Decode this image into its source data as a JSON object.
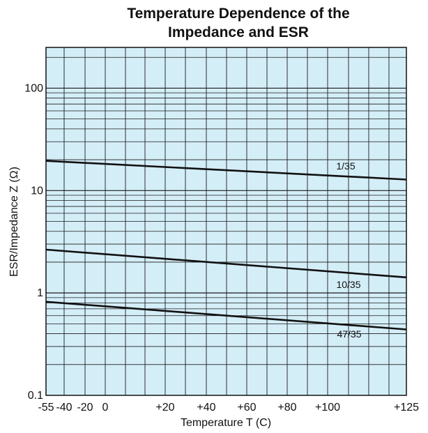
{
  "chart_data": {
    "type": "line",
    "title": "Temperature Dependence of the Impedance and ESR",
    "xlabel": "Temperature T (C)",
    "ylabel": "ESR/Impedance Z (Ω)",
    "xlim": [
      -55,
      125
    ],
    "ylim": [
      0.1,
      250
    ],
    "yscale": "log",
    "grid": true,
    "x_ticks": [
      -55,
      -40,
      -20,
      0,
      20,
      40,
      60,
      80,
      100,
      125
    ],
    "x_tick_labels": [
      "-55",
      "-40",
      "-20",
      "0",
      "+20",
      "+40",
      "+60",
      "+80",
      "+100",
      "+125"
    ],
    "y_ticks": [
      0.1,
      1,
      10,
      100
    ],
    "y_tick_labels": [
      "0.1",
      "1",
      "10",
      "100"
    ],
    "series": [
      {
        "name": "1/35",
        "x": [
          -55,
          125
        ],
        "y": [
          19.5,
          12.8
        ]
      },
      {
        "name": "10/35",
        "x": [
          -55,
          125
        ],
        "y": [
          2.65,
          1.42
        ]
      },
      {
        "name": "47/35",
        "x": [
          -55,
          125
        ],
        "y": [
          0.82,
          0.44
        ]
      }
    ],
    "colors": {
      "plot_background": "#d4eef8",
      "grid": "#1a1a1a",
      "line": "#111111"
    }
  }
}
